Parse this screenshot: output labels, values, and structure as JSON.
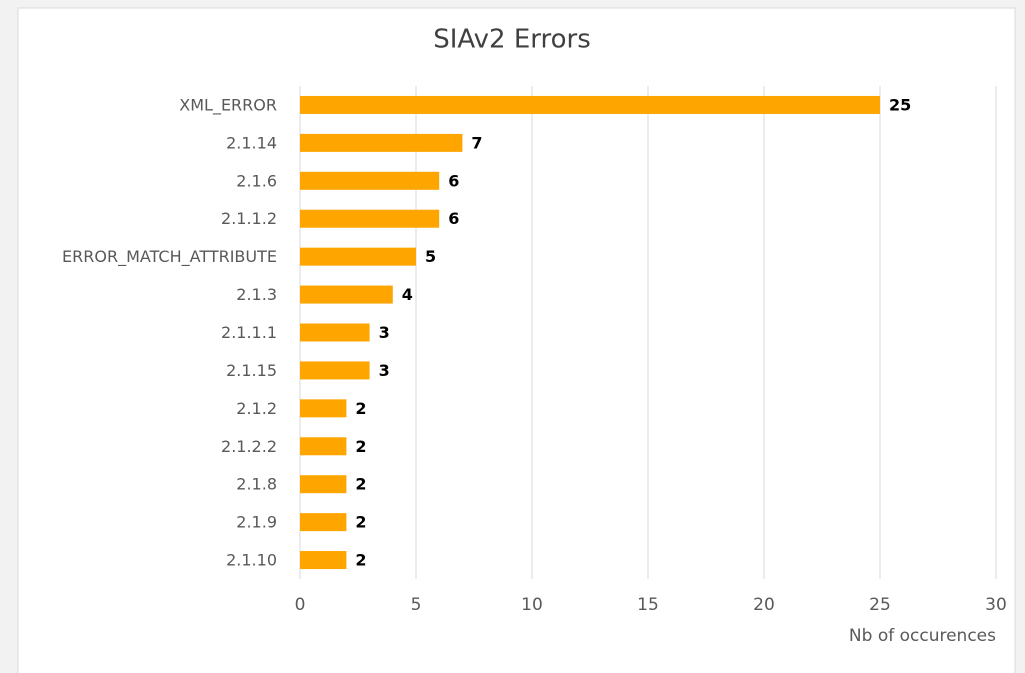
{
  "chart_data": {
    "type": "barh",
    "title": "SIAv2 Errors",
    "categories": [
      "XML_ERROR",
      "2.1.14",
      "2.1.6",
      "2.1.1.2",
      "ERROR_MATCH_ATTRIBUTE",
      "2.1.3",
      "2.1.1.1",
      "2.1.15",
      "2.1.2",
      "2.1.2.2",
      "2.1.8",
      "2.1.9",
      "2.1.10"
    ],
    "values": [
      25,
      7,
      6,
      6,
      5,
      4,
      3,
      3,
      2,
      2,
      2,
      2,
      2
    ],
    "color": "#ffa500",
    "xlim": [
      0,
      30
    ],
    "xticks": [
      0,
      5,
      10,
      15,
      20,
      25,
      30
    ],
    "xlabel": "Nb of occurences",
    "grid": true
  }
}
